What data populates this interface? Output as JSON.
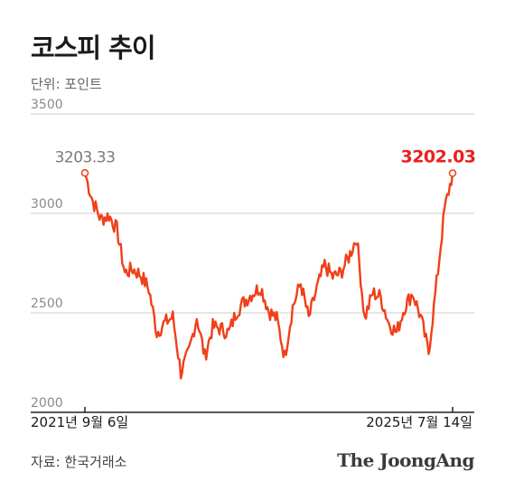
{
  "header": {
    "title": "코스피 추이",
    "unit": "단위: 포인트"
  },
  "footer": {
    "source": "자료: 한국거래소",
    "logo": "The JoongAng"
  },
  "colors": {
    "line": "#f0401a",
    "end_label": "#e8201c",
    "start_label": "#7a7a7a",
    "grid": "#cccccc"
  },
  "chart_data": {
    "type": "line",
    "title": "코스피 추이",
    "ylabel": "단위: 포인트",
    "ylim": [
      2000,
      3500
    ],
    "yticks": [
      2000,
      2500,
      3000,
      3500
    ],
    "grid": true,
    "x_tick_labels": [
      "2021년 9월 6일",
      "2025년 7월 14일"
    ],
    "start": {
      "date": "2021년 9월 6일",
      "value": 3203.33,
      "label": "3203.33"
    },
    "end": {
      "date": "2025년 7월 14일",
      "value": 3202.03,
      "label": "3202.03"
    },
    "x": [
      "2021-09",
      "2021-10",
      "2021-11",
      "2021-12",
      "2022-01",
      "2022-02",
      "2022-03",
      "2022-04",
      "2022-05",
      "2022-06",
      "2022-07",
      "2022-08",
      "2022-09",
      "2022-10",
      "2022-11",
      "2022-12",
      "2023-01",
      "2023-02",
      "2023-03",
      "2023-04",
      "2023-05",
      "2023-06",
      "2023-07",
      "2023-08",
      "2023-09",
      "2023-10",
      "2023-11",
      "2023-12",
      "2024-01",
      "2024-02",
      "2024-03",
      "2024-04",
      "2024-05",
      "2024-06",
      "2024-07",
      "2024-08",
      "2024-09",
      "2024-10",
      "2024-11",
      "2024-12",
      "2025-01",
      "2025-02",
      "2025-03",
      "2025-04",
      "2025-05",
      "2025-06",
      "2025-07"
    ],
    "series": [
      {
        "values": [
          3203.33,
          3060,
          2970,
          2990,
          2920,
          2700,
          2720,
          2690,
          2620,
          2400,
          2450,
          2480,
          2200,
          2300,
          2480,
          2280,
          2430,
          2420,
          2400,
          2510,
          2560,
          2600,
          2630,
          2510,
          2470,
          2280,
          2530,
          2650,
          2470,
          2620,
          2740,
          2680,
          2700,
          2780,
          2880,
          2470,
          2600,
          2580,
          2450,
          2400,
          2530,
          2600,
          2480,
          2300,
          2650,
          3020,
          3202.03
        ]
      }
    ]
  }
}
